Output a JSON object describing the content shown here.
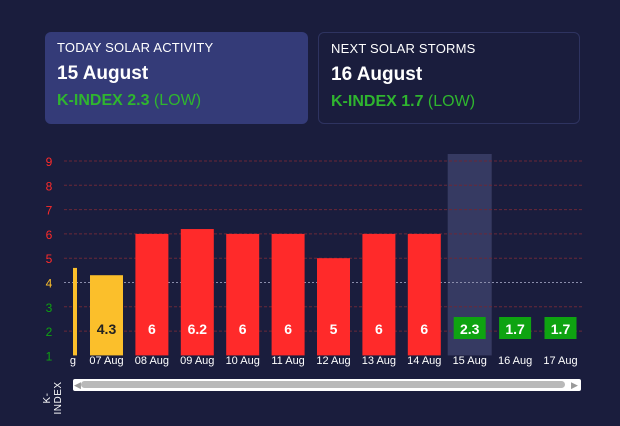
{
  "cards": {
    "today": {
      "label": "TODAY SOLAR ACTIVITY",
      "date": "15 August",
      "k_strong": "K-INDEX 2.3",
      "k_level": "(LOW)"
    },
    "next": {
      "label": "NEXT SOLAR STORMS",
      "date": "16 August",
      "k_strong": "K-INDEX 1.7",
      "k_level": "(LOW)"
    }
  },
  "colors": {
    "background": "#1a1d3d",
    "today_card": "#343b78",
    "yellow": "#fbbf2b",
    "red": "#ff2a2a",
    "green": "#0ea311",
    "highlight_band": "#3c4069"
  },
  "chart_data": {
    "type": "bar",
    "ylabel": "K-INDEX",
    "ylim": [
      1,
      9
    ],
    "y_ticks": [
      1,
      2,
      3,
      4,
      5,
      6,
      7,
      8,
      9
    ],
    "partial_first_label": "g",
    "categories": [
      "07 Aug",
      "08 Aug",
      "09 Aug",
      "10 Aug",
      "11 Aug",
      "12 Aug",
      "13 Aug",
      "14 Aug",
      "15 Aug",
      "16 Aug",
      "17 Aug"
    ],
    "values": [
      4.3,
      6,
      6.2,
      6,
      6,
      5,
      6,
      6,
      2.3,
      1.7,
      1.7
    ],
    "value_labels": [
      "4.3",
      "6",
      "6.2",
      "6",
      "6",
      "5",
      "6",
      "6",
      "2.3",
      "1.7",
      "1.7"
    ],
    "levels": [
      "moderate",
      "high",
      "high",
      "high",
      "high",
      "high",
      "high",
      "high",
      "low",
      "low",
      "low"
    ],
    "highlighted_category": "15 Aug",
    "grid": true
  },
  "scrollbar": {
    "left_arrow": "◀",
    "right_arrow": "▶"
  }
}
